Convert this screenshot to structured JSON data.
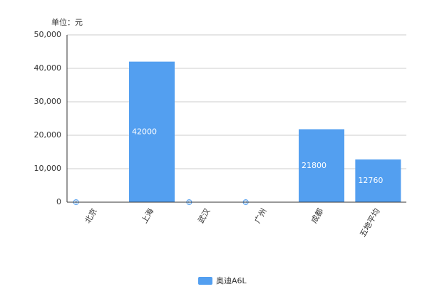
{
  "chart_data": {
    "type": "bar",
    "y_axis_label": "单位：元",
    "categories": [
      "北京",
      "上海",
      "武汉",
      "广州",
      "成都",
      "五地平均"
    ],
    "series": [
      {
        "name": "奥迪A6L",
        "color": "#539ff0",
        "values": [
          0,
          42000,
          0,
          0,
          21800,
          12760
        ]
      }
    ],
    "ylim": [
      0,
      50000
    ],
    "yticks": [
      0,
      {
        "value": 10000,
        "label": "10,000"
      },
      {
        "value": 20000,
        "label": "20,000"
      },
      {
        "value": 30000,
        "label": "30,000"
      },
      {
        "value": 40000,
        "label": "40,000"
      },
      {
        "value": 50000,
        "label": "50,000"
      }
    ],
    "grid": true,
    "legend": "bottom"
  }
}
